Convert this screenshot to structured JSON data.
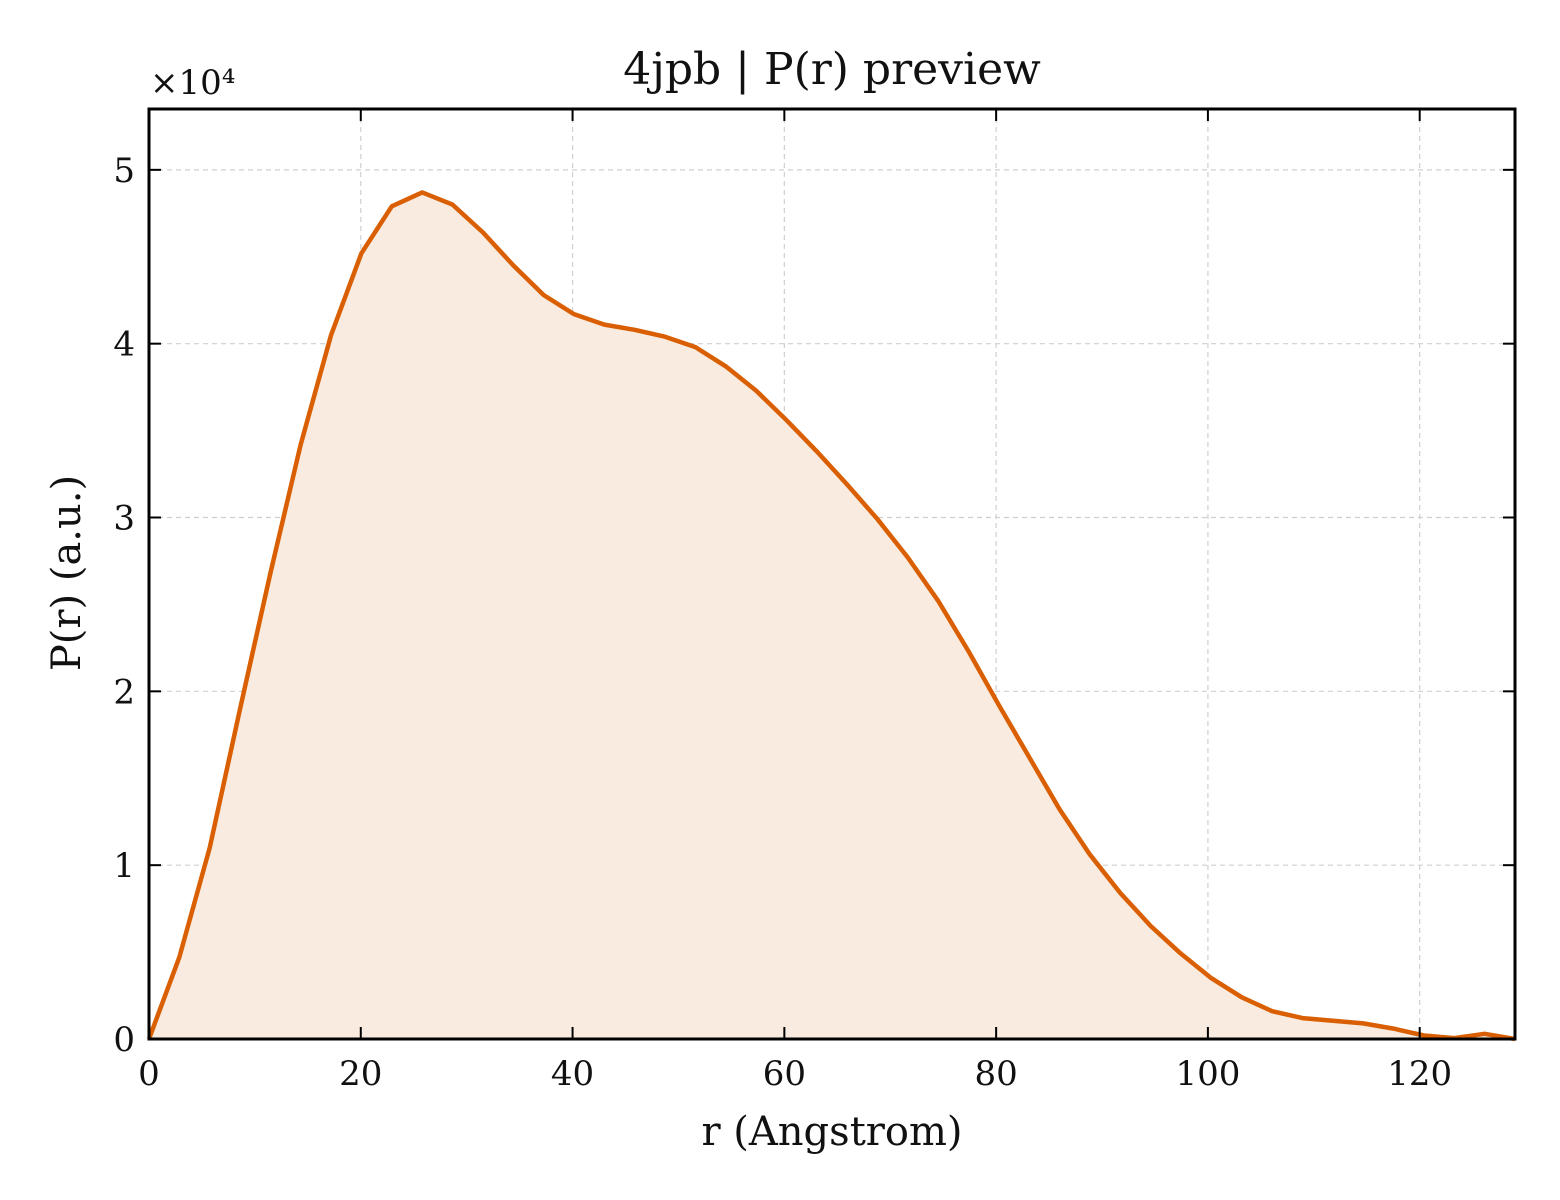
{
  "chart_data": {
    "type": "area",
    "title": "4jpb | P(r) preview",
    "xlabel": "r (Angstrom)",
    "ylabel": "P(r) (a.u.)",
    "y_multiplier_label": "×10⁴",
    "y_scale_factor": 10000,
    "xlim": [
      0,
      129
    ],
    "ylim": [
      0,
      53500
    ],
    "xticks": [
      0,
      20,
      40,
      60,
      80,
      100,
      120
    ],
    "yticks": [
      0,
      10000,
      20000,
      30000,
      40000,
      50000
    ],
    "ytick_labels": [
      "0",
      "1",
      "2",
      "3",
      "4",
      "5"
    ],
    "grid": true,
    "line_color": "#d95f02",
    "fill_color": "#f9ebe0",
    "series": [
      {
        "x": [
          0,
          2.86,
          5.73,
          8.6,
          11.46,
          14.33,
          17.2,
          20.06,
          22.93,
          25.8,
          28.66,
          31.53,
          34.4,
          37.26,
          40.13,
          43.0,
          45.86,
          48.73,
          51.6,
          54.46,
          57.33,
          60.2,
          63.06,
          65.93,
          68.8,
          71.66,
          74.53,
          77.4,
          80.26,
          83.13,
          86.0,
          88.86,
          91.73,
          94.6,
          97.46,
          100.33,
          103.2,
          106.06,
          108.93,
          111.8,
          114.66,
          117.53,
          120.4,
          123.26,
          126.13,
          129.0
        ],
        "values": [
          0,
          4700,
          11000,
          19000,
          26800,
          34200,
          40500,
          45200,
          47900,
          48700,
          48000,
          46400,
          44500,
          42800,
          41700,
          41100,
          40800,
          40400,
          39800,
          38700,
          37300,
          35600,
          33800,
          31900,
          29900,
          27700,
          25200,
          22300,
          19200,
          16200,
          13200,
          10600,
          8400,
          6500,
          4900,
          3500,
          2400,
          1600,
          1200,
          1050,
          900,
          600,
          200,
          50,
          300,
          0
        ]
      }
    ]
  }
}
